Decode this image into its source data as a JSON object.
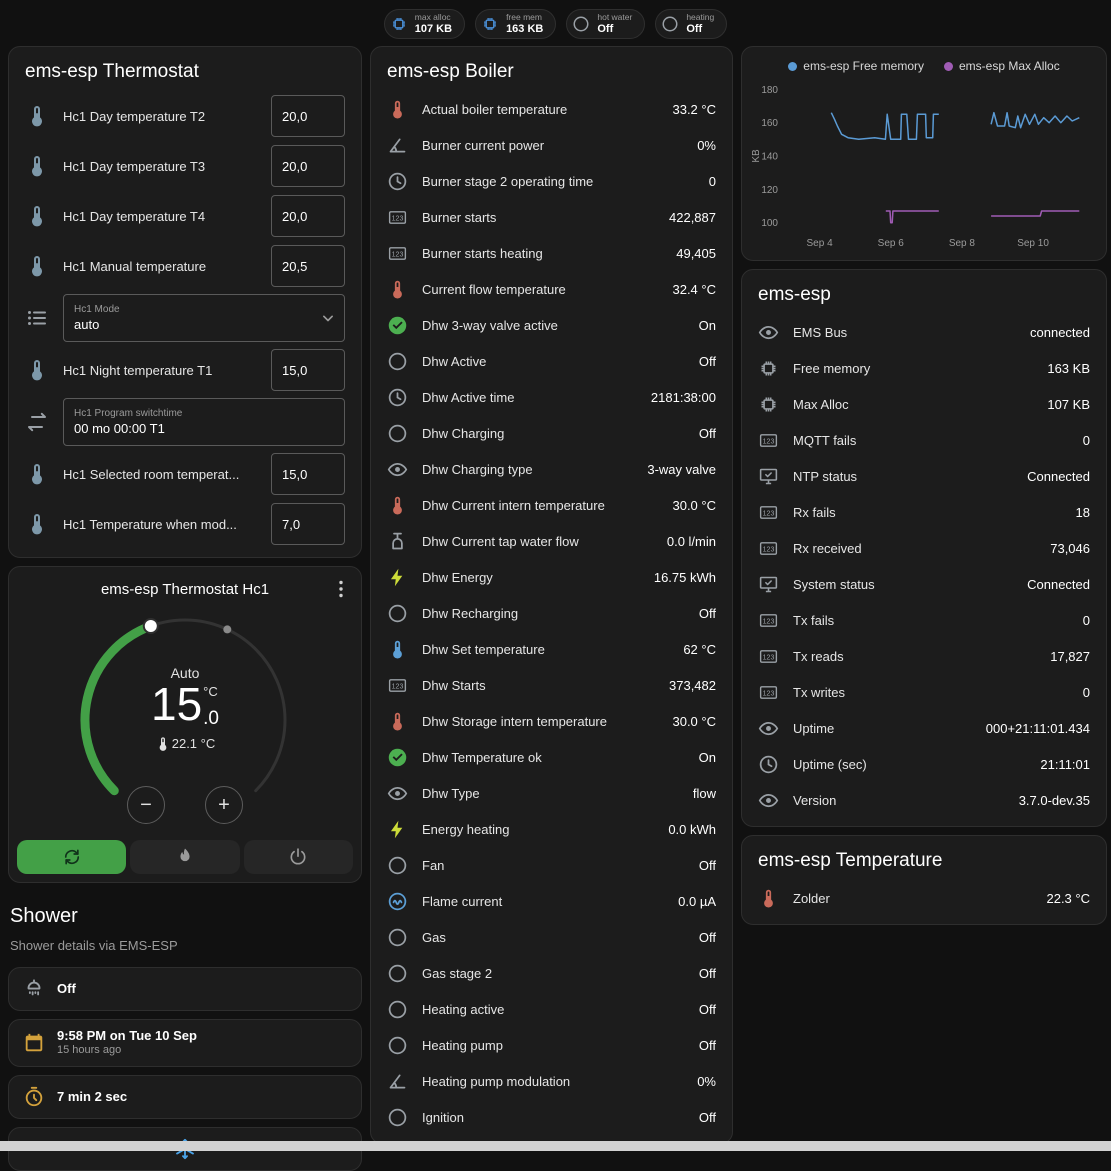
{
  "badges": [
    {
      "icon": "chip",
      "icon_color": "#4a90d9",
      "label": "max alloc",
      "value": "107 KB"
    },
    {
      "icon": "chip",
      "icon_color": "#4a90d9",
      "label": "free mem",
      "value": "163 KB"
    },
    {
      "icon": "circle",
      "icon_color": "#9aa0a6",
      "label": "hot water",
      "value": "Off"
    },
    {
      "icon": "circle",
      "icon_color": "#9aa0a6",
      "label": "heating",
      "value": "Off"
    }
  ],
  "thermostat": {
    "title": "ems-esp Thermostat",
    "rows": [
      {
        "kind": "number",
        "icon": "thermometer",
        "icon_color": "#7d98a9",
        "label": "Hc1 Day temperature T2",
        "value": "20,0"
      },
      {
        "kind": "number",
        "icon": "thermometer",
        "icon_color": "#7d98a9",
        "label": "Hc1 Day temperature T3",
        "value": "20,0"
      },
      {
        "kind": "number",
        "icon": "thermometer",
        "icon_color": "#7d98a9",
        "label": "Hc1 Day temperature T4",
        "value": "20,0"
      },
      {
        "kind": "number",
        "icon": "thermometer",
        "icon_color": "#7d98a9",
        "label": "Hc1 Manual temperature",
        "value": "20,5"
      },
      {
        "kind": "select",
        "icon": "list",
        "icon_color": "#9aa0a6",
        "label": "Hc1 Mode",
        "value": "auto"
      },
      {
        "kind": "number",
        "icon": "thermometer",
        "icon_color": "#7d98a9",
        "label": "Hc1 Night temperature T1",
        "value": "15,0"
      },
      {
        "kind": "text",
        "icon": "swap",
        "icon_color": "#9aa0a6",
        "label": "Hc1 Program switchtime",
        "value": "00 mo 00:00 T1"
      },
      {
        "kind": "number",
        "icon": "thermometer",
        "icon_color": "#7d98a9",
        "label": "Hc1 Selected room temperat...",
        "value": "15,0"
      },
      {
        "kind": "number",
        "icon": "thermometer",
        "icon_color": "#7d98a9",
        "label": "Hc1 Temperature when mod...",
        "value": "7,0"
      }
    ]
  },
  "dial": {
    "title": "ems-esp Thermostat Hc1",
    "mode": "Auto",
    "target_int": "15",
    "target_dec": ".0",
    "unit": "°C",
    "current": "22.1 °C",
    "current_icon": "thermometer",
    "decrease": "−",
    "increase": "+",
    "accent_color": "#43a047",
    "modes": [
      {
        "icon": "autorenew",
        "name": "auto",
        "active": true
      },
      {
        "icon": "flame",
        "name": "heat",
        "active": false
      },
      {
        "icon": "power",
        "name": "off",
        "active": false
      }
    ]
  },
  "shower": {
    "title": "Shower",
    "subtitle": "Shower details via EMS-ESP",
    "rows": [
      {
        "icon": "shower",
        "icon_color": "#9aa0a6",
        "primary": "Off",
        "secondary": ""
      },
      {
        "icon": "calendar",
        "icon_color": "#d4a23c",
        "primary": "9:58 PM on Tue 10 Sep",
        "secondary": "15 hours ago"
      },
      {
        "icon": "timer",
        "icon_color": "#d4a23c",
        "primary": "7 min 2 sec",
        "secondary": ""
      },
      {
        "icon": "snowflake",
        "icon_color": "#4aa3e8",
        "primary": "",
        "secondary": "",
        "center": true
      }
    ]
  },
  "boiler": {
    "title": "ems-esp Boiler",
    "rows": [
      {
        "icon": "thermometer",
        "icon_color": "#c96a5a",
        "label": "Actual boiler temperature",
        "value": "33.2 °C"
      },
      {
        "icon": "angle",
        "icon_color": "#9aa0a6",
        "label": "Burner current power",
        "value": "0%"
      },
      {
        "icon": "clock",
        "icon_color": "#9aa0a6",
        "label": "Burner stage 2 operating time",
        "value": "0"
      },
      {
        "icon": "counter",
        "icon_color": "#9aa0a6",
        "label": "Burner starts",
        "value": "422,887"
      },
      {
        "icon": "counter",
        "icon_color": "#9aa0a6",
        "label": "Burner starts heating",
        "value": "49,405"
      },
      {
        "icon": "thermometer",
        "icon_color": "#c96a5a",
        "label": "Current flow temperature",
        "value": "32.4 °C"
      },
      {
        "icon": "check-circle",
        "icon_color": "#4caf50",
        "label": "Dhw 3-way valve active",
        "value": "On"
      },
      {
        "icon": "circle",
        "icon_color": "#9aa0a6",
        "label": "Dhw Active",
        "value": "Off"
      },
      {
        "icon": "clock",
        "icon_color": "#9aa0a6",
        "label": "Dhw Active time",
        "value": "2181:38:00"
      },
      {
        "icon": "circle",
        "icon_color": "#9aa0a6",
        "label": "Dhw Charging",
        "value": "Off"
      },
      {
        "icon": "eye",
        "icon_color": "#9aa0a6",
        "label": "Dhw Charging type",
        "value": "3-way valve"
      },
      {
        "icon": "thermometer",
        "icon_color": "#c96a5a",
        "label": "Dhw Current intern temperature",
        "value": "30.0 °C"
      },
      {
        "icon": "pump",
        "icon_color": "#9aa0a6",
        "label": "Dhw Current tap water flow",
        "value": "0.0 l/min"
      },
      {
        "icon": "bolt",
        "icon_color": "#cddc39",
        "label": "Dhw Energy",
        "value": "16.75 kWh"
      },
      {
        "icon": "circle",
        "icon_color": "#9aa0a6",
        "label": "Dhw Recharging",
        "value": "Off"
      },
      {
        "icon": "thermometer",
        "icon_color": "#5c9fd6",
        "label": "Dhw Set temperature",
        "value": "62 °C"
      },
      {
        "icon": "counter",
        "icon_color": "#9aa0a6",
        "label": "Dhw Starts",
        "value": "373,482"
      },
      {
        "icon": "thermometer",
        "icon_color": "#c96a5a",
        "label": "Dhw Storage intern temperature",
        "value": "30.0 °C"
      },
      {
        "icon": "check-circle",
        "icon_color": "#4caf50",
        "label": "Dhw Temperature ok",
        "value": "On"
      },
      {
        "icon": "eye",
        "icon_color": "#9aa0a6",
        "label": "Dhw Type",
        "value": "flow"
      },
      {
        "icon": "bolt",
        "icon_color": "#cddc39",
        "label": "Energy heating",
        "value": "0.0 kWh"
      },
      {
        "icon": "circle",
        "icon_color": "#9aa0a6",
        "label": "Fan",
        "value": "Off"
      },
      {
        "icon": "current",
        "icon_color": "#5c9fd6",
        "label": "Flame current",
        "value": "0.0 µA"
      },
      {
        "icon": "circle",
        "icon_color": "#9aa0a6",
        "label": "Gas",
        "value": "Off"
      },
      {
        "icon": "circle",
        "icon_color": "#9aa0a6",
        "label": "Gas stage 2",
        "value": "Off"
      },
      {
        "icon": "circle",
        "icon_color": "#9aa0a6",
        "label": "Heating active",
        "value": "Off"
      },
      {
        "icon": "circle",
        "icon_color": "#9aa0a6",
        "label": "Heating pump",
        "value": "Off"
      },
      {
        "icon": "angle",
        "icon_color": "#9aa0a6",
        "label": "Heating pump modulation",
        "value": "0%"
      },
      {
        "icon": "circle",
        "icon_color": "#9aa0a6",
        "label": "Ignition",
        "value": "Off"
      }
    ]
  },
  "chart_data": {
    "type": "line",
    "title": "",
    "xlabel": "",
    "ylabel": "KB",
    "ylim": [
      95,
      185
    ],
    "yticks": [
      100,
      120,
      140,
      160,
      180
    ],
    "xlim": [
      3.0,
      11.6
    ],
    "xticks": [
      {
        "x": 4,
        "label": "Sep 4"
      },
      {
        "x": 6,
        "label": "Sep 6"
      },
      {
        "x": 8,
        "label": "Sep 8"
      },
      {
        "x": 10,
        "label": "Sep 10"
      }
    ],
    "grid": false,
    "legend_position": "top",
    "series": [
      {
        "name": "ems-esp Free memory",
        "color": "#5b9bd5",
        "segments": [
          [
            [
              4.33,
              166
            ],
            [
              4.42,
              162
            ],
            [
              4.5,
              158
            ],
            [
              4.62,
              153
            ],
            [
              4.8,
              151
            ],
            [
              5.1,
              150
            ],
            [
              5.55,
              151
            ],
            [
              5.85,
              150
            ],
            [
              5.9,
              165
            ],
            [
              6.0,
              150
            ],
            [
              6.28,
              150
            ],
            [
              6.3,
              165
            ],
            [
              6.45,
              165
            ],
            [
              6.5,
              150
            ],
            [
              6.72,
              150
            ],
            [
              6.75,
              165
            ],
            [
              6.98,
              165
            ],
            [
              7.0,
              151
            ],
            [
              7.18,
              151
            ],
            [
              7.2,
              165
            ],
            [
              7.35,
              165
            ]
          ],
          [
            [
              8.82,
              159
            ],
            [
              8.9,
              166
            ],
            [
              9.0,
              158
            ],
            [
              9.2,
              158
            ],
            [
              9.27,
              166
            ],
            [
              9.33,
              158
            ],
            [
              9.5,
              157
            ],
            [
              9.57,
              164
            ],
            [
              9.65,
              157
            ],
            [
              9.78,
              165
            ],
            [
              9.9,
              159
            ],
            [
              10.05,
              165
            ],
            [
              10.15,
              159
            ],
            [
              10.3,
              163
            ],
            [
              10.45,
              160
            ],
            [
              10.62,
              164
            ],
            [
              10.78,
              160
            ],
            [
              10.95,
              164
            ],
            [
              11.1,
              161
            ],
            [
              11.3,
              163
            ]
          ]
        ]
      },
      {
        "name": "ems-esp Max Alloc",
        "color": "#a05cb5",
        "segments": [
          [
            [
              5.86,
              107
            ],
            [
              5.98,
              107
            ],
            [
              6.0,
              100
            ],
            [
              6.04,
              100
            ],
            [
              6.06,
              107
            ],
            [
              7.35,
              107
            ]
          ],
          [
            [
              8.82,
              104
            ],
            [
              10.2,
              104
            ],
            [
              10.24,
              107
            ],
            [
              11.3,
              107
            ]
          ]
        ]
      }
    ]
  },
  "ems": {
    "title": "ems-esp",
    "rows": [
      {
        "icon": "eye",
        "icon_color": "#9aa0a6",
        "label": "EMS Bus",
        "value": "connected"
      },
      {
        "icon": "chip",
        "icon_color": "#9aa0a6",
        "label": "Free memory",
        "value": "163 KB"
      },
      {
        "icon": "chip",
        "icon_color": "#9aa0a6",
        "label": "Max Alloc",
        "value": "107 KB"
      },
      {
        "icon": "counter",
        "icon_color": "#9aa0a6",
        "label": "MQTT fails",
        "value": "0"
      },
      {
        "icon": "monitor-check",
        "icon_color": "#9aa0a6",
        "label": "NTP status",
        "value": "Connected"
      },
      {
        "icon": "counter",
        "icon_color": "#9aa0a6",
        "label": "Rx fails",
        "value": "18"
      },
      {
        "icon": "counter",
        "icon_color": "#9aa0a6",
        "label": "Rx received",
        "value": "73,046"
      },
      {
        "icon": "monitor-check",
        "icon_color": "#9aa0a6",
        "label": "System status",
        "value": "Connected"
      },
      {
        "icon": "counter",
        "icon_color": "#9aa0a6",
        "label": "Tx fails",
        "value": "0"
      },
      {
        "icon": "counter",
        "icon_color": "#9aa0a6",
        "label": "Tx reads",
        "value": "17,827"
      },
      {
        "icon": "counter",
        "icon_color": "#9aa0a6",
        "label": "Tx writes",
        "value": "0"
      },
      {
        "icon": "eye",
        "icon_color": "#9aa0a6",
        "label": "Uptime",
        "value": "000+21:11:01.434"
      },
      {
        "icon": "clock",
        "icon_color": "#9aa0a6",
        "label": "Uptime (sec)",
        "value": "21:11:01"
      },
      {
        "icon": "eye",
        "icon_color": "#9aa0a6",
        "label": "Version",
        "value": "3.7.0-dev.35"
      }
    ]
  },
  "temperature": {
    "title": "ems-esp Temperature",
    "rows": [
      {
        "icon": "thermometer",
        "icon_color": "#c96a5a",
        "label": "Zolder",
        "value": "22.3 °C"
      }
    ]
  }
}
